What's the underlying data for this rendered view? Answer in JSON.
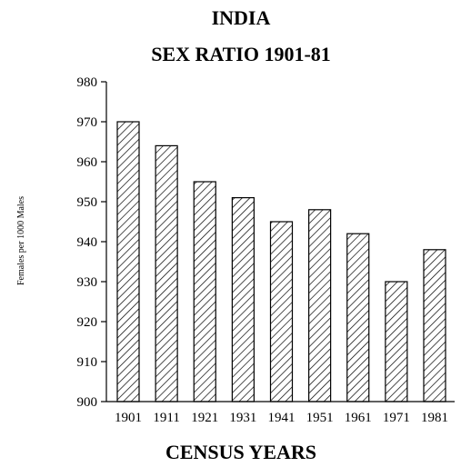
{
  "chart_data": {
    "type": "bar",
    "title": "INDIA",
    "subtitle": "SEX RATIO 1901-81",
    "xlabel": "CENSUS YEARS",
    "ylabel": "Females per 1000 Males",
    "categories": [
      "1901",
      "1911",
      "1921",
      "1931",
      "1941",
      "1951",
      "1961",
      "1971",
      "1981"
    ],
    "values": [
      970,
      964,
      955,
      951,
      945,
      948,
      942,
      930,
      938
    ],
    "ylim": [
      900,
      980
    ],
    "yticks": [
      900,
      910,
      920,
      930,
      940,
      950,
      960,
      970,
      980
    ],
    "grid": false,
    "legend": "none",
    "bar_fill": "diagonal-hatch",
    "colors": {
      "bar_stroke": "#000000",
      "hatch": "#000000",
      "background": "#ffffff"
    }
  }
}
